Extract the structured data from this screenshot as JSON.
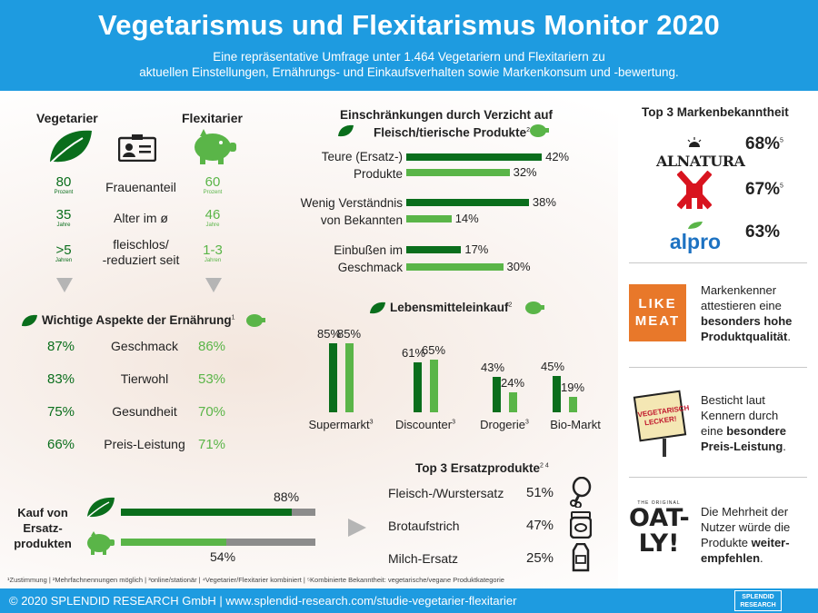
{
  "header": {
    "title": "Vegetarismus und Flexitarismus Monitor 2020",
    "subtitle_line1": "Eine repräsentative Umfrage unter 1.464 Vegetariern und Flexitariern zu",
    "subtitle_line2": "aktuellen Einstellungen, Ernährungs- und Einkaufsverhalten sowie Markenkonsum und -bewertung."
  },
  "compare": {
    "veg_label": "Vegetarier",
    "flex_label": "Flexitarier",
    "rows": [
      {
        "veg": "80",
        "veg_unit": "Prozent",
        "label": "Frauenanteil",
        "flex": "60",
        "flex_unit": "Prozent"
      },
      {
        "veg": "35",
        "veg_unit": "Jahre",
        "label": "Alter im ø",
        "flex": "46",
        "flex_unit": "Jahre"
      },
      {
        "veg": ">5",
        "veg_unit": "Jahren",
        "label": "fleischlos/\n-reduziert seit",
        "flex": "1-3",
        "flex_unit": "Jahren"
      }
    ]
  },
  "aspects": {
    "title": "Wichtige Aspekte der Ernährung",
    "sup": "1",
    "rows": [
      {
        "veg": "87%",
        "label": "Geschmack",
        "flex": "86%"
      },
      {
        "veg": "83%",
        "label": "Tierwohl",
        "flex": "53%"
      },
      {
        "veg": "75%",
        "label": "Gesundheit",
        "flex": "70%"
      },
      {
        "veg": "66%",
        "label": "Preis-Leistung",
        "flex": "71%"
      }
    ]
  },
  "purchase": {
    "label_line1": "Kauf von",
    "label_line2": "Ersatz-",
    "label_line3": "produkten",
    "veg_pct": "88%",
    "flex_pct": "54%"
  },
  "restrictions": {
    "title_line1": "Einschränkungen durch Verzicht auf",
    "title_line2": "Fleisch/tierische Produkte",
    "sup": "2",
    "rows": [
      {
        "label_line1": "Teure (Ersatz-)",
        "label_line2": "Produkte",
        "veg": "42%",
        "flex": "32%"
      },
      {
        "label_line1": "Wenig Verständnis",
        "label_line2": "von Bekannten",
        "veg": "38%",
        "flex": "14%"
      },
      {
        "label_line1": "Einbußen im",
        "label_line2": "Geschmack",
        "veg": "17%",
        "flex": "30%"
      }
    ]
  },
  "shopping": {
    "title": "Lebensmitteleinkauf",
    "sup": "2",
    "groups": [
      {
        "label": "Supermarkt",
        "sup": "3",
        "veg": "85%",
        "flex": "85%"
      },
      {
        "label": "Discounter",
        "sup": "3",
        "veg": "61%",
        "flex": "65%"
      },
      {
        "label": "Drogerie",
        "sup": "3",
        "veg": "43%",
        "flex": "24%"
      },
      {
        "label": "Bio-Markt",
        "sup": "",
        "veg": "45%",
        "flex": "19%"
      }
    ]
  },
  "chart_data": {
    "type": "bar",
    "title": "Lebensmitteleinkauf",
    "categories": [
      "Supermarkt",
      "Discounter",
      "Drogerie",
      "Bio-Markt"
    ],
    "series": [
      {
        "name": "Vegetarier",
        "values": [
          85,
          61,
          43,
          45
        ]
      },
      {
        "name": "Flexitarier",
        "values": [
          85,
          65,
          24,
          19
        ]
      }
    ],
    "ylim": [
      0,
      100
    ],
    "xlabel": "",
    "ylabel": ""
  },
  "substitutes": {
    "title": "Top 3 Ersatzprodukte",
    "sup": "2 4",
    "rows": [
      {
        "label": "Fleisch-/Wurstersatz",
        "pct": "51%",
        "icon": "drumstick-icon"
      },
      {
        "label": "Brotaufstrich",
        "pct": "47%",
        "icon": "jar-icon"
      },
      {
        "label": "Milch-Ersatz",
        "pct": "25%",
        "icon": "milk-carton-icon"
      }
    ]
  },
  "brands": {
    "title": "Top 3 Markenbekanntheit",
    "rows": [
      {
        "name": "ALNATURA",
        "pct": "68%",
        "sup": "5"
      },
      {
        "name": "",
        "pct": "67%",
        "sup": "5"
      },
      {
        "name": "alpro",
        "pct": "63%",
        "sup": ""
      }
    ]
  },
  "side": {
    "likemeat_logo_l1": "LIKE",
    "likemeat_logo_l2": "MEAT",
    "likemeat_text_l1": "Markenkenner",
    "likemeat_text_l2": "attestieren eine",
    "likemeat_text_l3": "besonders hohe",
    "likemeat_text_l4": "Produktqualität",
    "lecker_badge": "VEGETARISCH LECKER!",
    "lecker_text_l1": "Besticht laut",
    "lecker_text_l2": "Kennern durch",
    "lecker_text_l3": "eine",
    "lecker_text_l3b": "besondere",
    "lecker_text_l4": "Preis-Leistung",
    "oatly_small": "THE ORIGINAL",
    "oatly_l1": "OAT-",
    "oatly_l2": "LY!",
    "oatly_text_l1": "Die Mehrheit der",
    "oatly_text_l2": "Nutzer würde die",
    "oatly_text_l3": "Produkte",
    "oatly_text_l3b": "weiter-",
    "oatly_text_l4": "empfehlen"
  },
  "notes": "¹Zustimmung | ²Mehrfachnennungen möglich | ³online/stationär | ⁴Vegetarier/Flexitarier kombiniert | ⁵Kombinierte Bekanntheit: vegetarische/vegane Produktkategorie",
  "footer": {
    "text": "© 2020  SPLENDID RESEARCH GmbH | www.splendid-research.com/studie-vegetarier-flexitarier",
    "logo_l1": "SPLENDID",
    "logo_l2": "RESEARCH"
  },
  "colors": {
    "header": "#1e9be0",
    "dark_green": "#0a6e1c",
    "light_green": "#5ab548",
    "grey": "#8c8c8c"
  }
}
